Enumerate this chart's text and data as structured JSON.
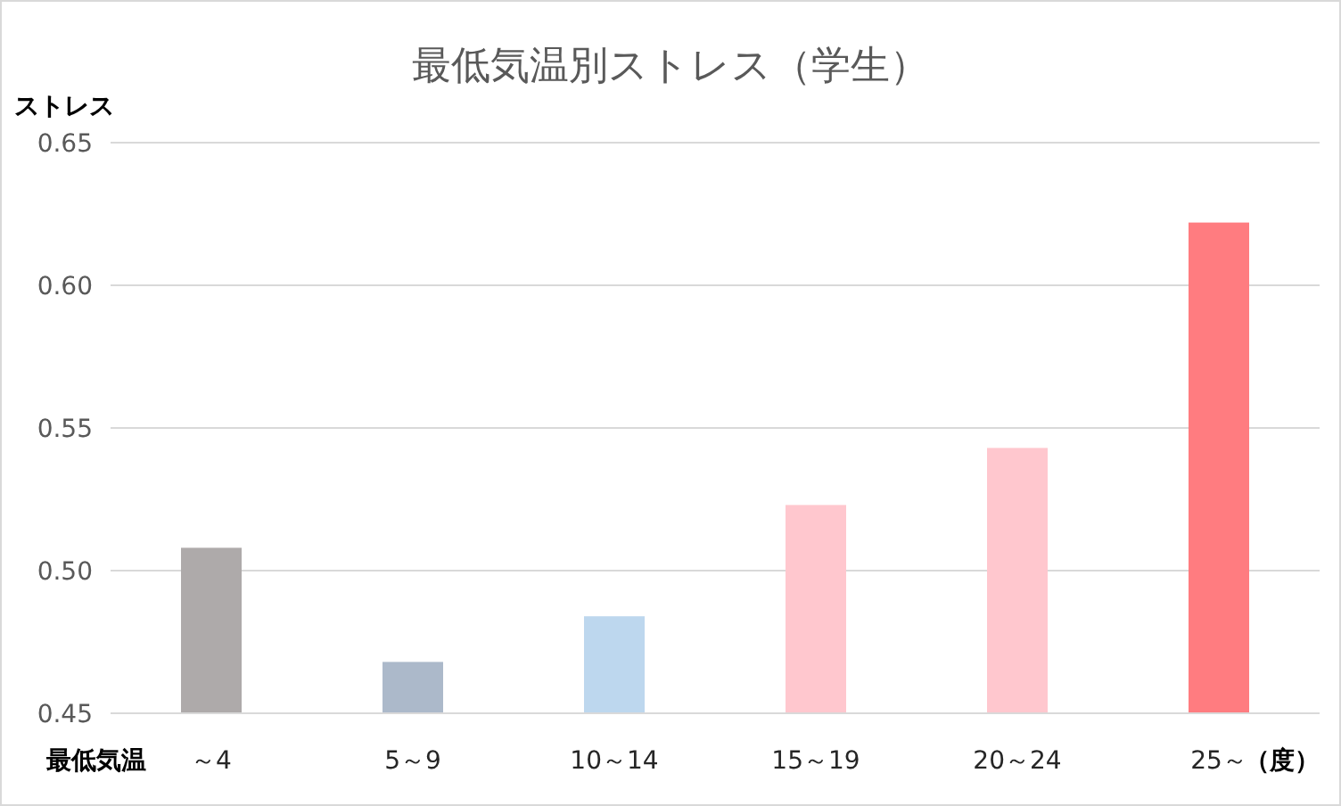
{
  "chart_data": {
    "type": "bar",
    "title": "最低気温別ストレス（学生）",
    "ylabel": "ストレス",
    "xlabel": "最低気温",
    "annotations": [
      "（度）"
    ],
    "categories": [
      "～4",
      "5～9",
      "10～14",
      "15～19",
      "20～24",
      "25～"
    ],
    "values": [
      0.508,
      0.468,
      0.484,
      0.523,
      0.543,
      0.622
    ],
    "colors": [
      "#aeaaaa",
      "#acb9ca",
      "#bdd7ee",
      "#ffc7ce",
      "#ffc7ce",
      "#ff7c80"
    ],
    "ylim": [
      0.45,
      0.65
    ],
    "yticks": [
      {
        "value": 0.45,
        "label": "0.45"
      },
      {
        "value": 0.5,
        "label": "0.50"
      },
      {
        "value": 0.55,
        "label": "0.55"
      },
      {
        "value": 0.6,
        "label": "0.60"
      },
      {
        "value": 0.65,
        "label": "0.65"
      }
    ],
    "grid": "y"
  }
}
